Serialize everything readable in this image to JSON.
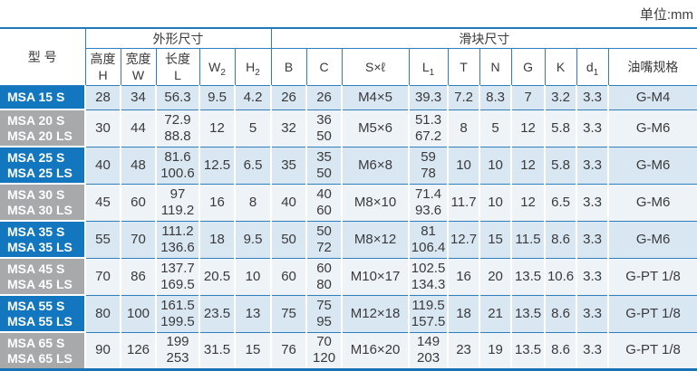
{
  "unit_label": "单位:mm",
  "colors": {
    "label_blue": "#1377c0",
    "label_gray": "#a7a9ab",
    "row_odd_bg": "#d9e7f3",
    "row_even_bg": "#eef3f8",
    "border_blue": "#2e7fbd",
    "text_dark": "#3a3a3a"
  },
  "table": {
    "header": {
      "model": "型 号",
      "group_outer": "外形尺寸",
      "group_slider": "滑块尺寸",
      "columns": [
        {
          "top": "高度",
          "base": "H"
        },
        {
          "top": "宽度",
          "base": "W"
        },
        {
          "top": "长度",
          "base": "L"
        },
        {
          "base": "W",
          "sub": "2"
        },
        {
          "base": "H",
          "sub": "2"
        },
        {
          "base": "B"
        },
        {
          "base": "C"
        },
        {
          "base": "S×ℓ"
        },
        {
          "base": "L",
          "sub": "1"
        },
        {
          "base": "T"
        },
        {
          "base": "N"
        },
        {
          "base": "G"
        },
        {
          "base": "K"
        },
        {
          "base": "d",
          "sub": "1"
        },
        {
          "base": "油嘴规格"
        }
      ]
    },
    "col_keys": [
      "H",
      "W",
      "L",
      "W2",
      "H2",
      "B",
      "C",
      "Sxl",
      "L1",
      "T",
      "N",
      "G",
      "K",
      "d1",
      "grease"
    ],
    "rows": [
      {
        "models": [
          "MSA 15 S"
        ],
        "label_style": "blue",
        "cells": [
          [
            "28"
          ],
          [
            "34"
          ],
          [
            "56.3"
          ],
          [
            "9.5"
          ],
          [
            "4.2"
          ],
          [
            "26"
          ],
          [
            "26"
          ],
          [
            "M4×5"
          ],
          [
            "39.3"
          ],
          [
            "7.2"
          ],
          [
            "8.3"
          ],
          [
            "7"
          ],
          [
            "3.2"
          ],
          [
            "3.3"
          ],
          [
            "G-M4"
          ]
        ]
      },
      {
        "models": [
          "MSA 20 S",
          "MSA 20 LS"
        ],
        "label_style": "gray",
        "cells": [
          [
            "30"
          ],
          [
            "44"
          ],
          [
            "72.9",
            "88.8"
          ],
          [
            "12"
          ],
          [
            "5"
          ],
          [
            "32"
          ],
          [
            "36",
            "50"
          ],
          [
            "M5×6"
          ],
          [
            "51.3",
            "67.2"
          ],
          [
            "8"
          ],
          [
            "5"
          ],
          [
            "12"
          ],
          [
            "5.8"
          ],
          [
            "3.3"
          ],
          [
            "G-M6"
          ]
        ]
      },
      {
        "models": [
          "MSA 25 S",
          "MSA 25 LS"
        ],
        "label_style": "blue",
        "cells": [
          [
            "40"
          ],
          [
            "48"
          ],
          [
            "81.6",
            "100.6"
          ],
          [
            "12.5"
          ],
          [
            "6.5"
          ],
          [
            "35"
          ],
          [
            "35",
            "50"
          ],
          [
            "M6×8"
          ],
          [
            "59",
            "78"
          ],
          [
            "10"
          ],
          [
            "10"
          ],
          [
            "12"
          ],
          [
            "5.8"
          ],
          [
            "3.3"
          ],
          [
            "G-M6"
          ]
        ]
      },
      {
        "models": [
          "MSA 30 S",
          "MSA 30 LS"
        ],
        "label_style": "gray",
        "cells": [
          [
            "45"
          ],
          [
            "60"
          ],
          [
            "97",
            "119.2"
          ],
          [
            "16"
          ],
          [
            "8"
          ],
          [
            "40"
          ],
          [
            "40",
            "60"
          ],
          [
            "M8×10"
          ],
          [
            "71.4",
            "93.6"
          ],
          [
            "11.7"
          ],
          [
            "10"
          ],
          [
            "12"
          ],
          [
            "6.5"
          ],
          [
            "3.3"
          ],
          [
            "G-M6"
          ]
        ]
      },
      {
        "models": [
          "MSA 35 S",
          "MSA 35 LS"
        ],
        "label_style": "blue",
        "cells": [
          [
            "55"
          ],
          [
            "70"
          ],
          [
            "111.2",
            "136.6"
          ],
          [
            "18"
          ],
          [
            "9.5"
          ],
          [
            "50"
          ],
          [
            "50",
            "72"
          ],
          [
            "M8×12"
          ],
          [
            "81",
            "106.4"
          ],
          [
            "12.7"
          ],
          [
            "15"
          ],
          [
            "11.5"
          ],
          [
            "8.6"
          ],
          [
            "3.3"
          ],
          [
            "G-M6"
          ]
        ]
      },
      {
        "models": [
          "MSA 45 S",
          "MSA 45 LS"
        ],
        "label_style": "gray",
        "cells": [
          [
            "70"
          ],
          [
            "86"
          ],
          [
            "137.7",
            "169.5"
          ],
          [
            "20.5"
          ],
          [
            "10"
          ],
          [
            "60"
          ],
          [
            "60",
            "80"
          ],
          [
            "M10×17"
          ],
          [
            "102.5",
            "134.3"
          ],
          [
            "16"
          ],
          [
            "20"
          ],
          [
            "13.5"
          ],
          [
            "10.6"
          ],
          [
            "3.3"
          ],
          [
            "G-PT 1/8"
          ]
        ]
      },
      {
        "models": [
          "MSA 55 S",
          "MSA 55 LS"
        ],
        "label_style": "blue",
        "cells": [
          [
            "80"
          ],
          [
            "100"
          ],
          [
            "161.5",
            "199.5"
          ],
          [
            "23.5"
          ],
          [
            "13"
          ],
          [
            "75"
          ],
          [
            "75",
            "95"
          ],
          [
            "M12×18"
          ],
          [
            "119.5",
            "157.5"
          ],
          [
            "18"
          ],
          [
            "21"
          ],
          [
            "13.5"
          ],
          [
            "8.6"
          ],
          [
            "3.3"
          ],
          [
            "G-PT 1/8"
          ]
        ]
      },
      {
        "models": [
          "MSA 65 S",
          "MSA 65 LS"
        ],
        "label_style": "gray",
        "cells": [
          [
            "90"
          ],
          [
            "126"
          ],
          [
            "199",
            "253"
          ],
          [
            "31.5"
          ],
          [
            "15"
          ],
          [
            "76"
          ],
          [
            "70",
            "120"
          ],
          [
            "M16×20"
          ],
          [
            "149",
            "203"
          ],
          [
            "23"
          ],
          [
            "19"
          ],
          [
            "13.5"
          ],
          [
            "8.6"
          ],
          [
            "3.3"
          ],
          [
            "G-PT 1/8"
          ]
        ]
      }
    ]
  }
}
